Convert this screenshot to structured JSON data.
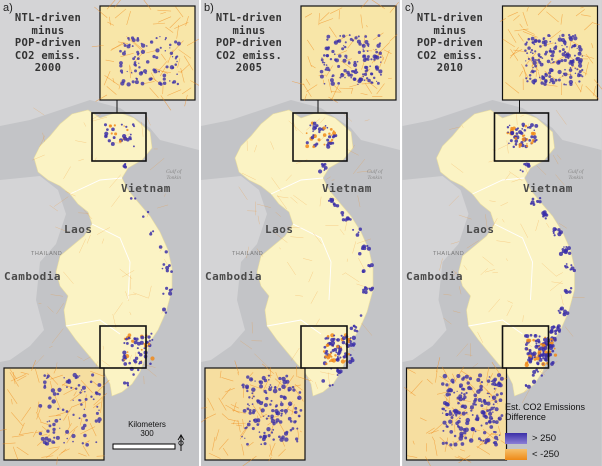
{
  "panels": [
    {
      "label": "a)",
      "title_lines": [
        "NTL-driven",
        "minus",
        "POP-driven",
        "CO2 emiss.",
        "2000"
      ]
    },
    {
      "label": "b)",
      "title_lines": [
        "NTL-driven",
        "minus",
        "POP-driven",
        "CO2 emiss.",
        "2005"
      ]
    },
    {
      "label": "c)",
      "title_lines": [
        "NTL-driven",
        "minus",
        "POP-driven",
        "CO2 emiss.",
        "2010"
      ]
    }
  ],
  "map_labels": {
    "vietnam": "Vietnam",
    "laos": "Laos",
    "cambodia": "Cambodia",
    "thailand": "THAILAND",
    "gulf": [
      "Gulf of",
      "Tonkin"
    ]
  },
  "scale": {
    "unit": "Kilometers",
    "value": "300"
  },
  "legend": {
    "title": "Est. CO2 Emissions Difference",
    "high": "> 250",
    "low": "< -250",
    "colors": {
      "high": "#3b2fa8",
      "mid": "#fff2c0",
      "low": "#f08a1a"
    }
  },
  "colors": {
    "land": "#fbf3c4",
    "other_land": "#d4d4d6",
    "sea": "#c3c4c7",
    "frame": "#000000"
  }
}
